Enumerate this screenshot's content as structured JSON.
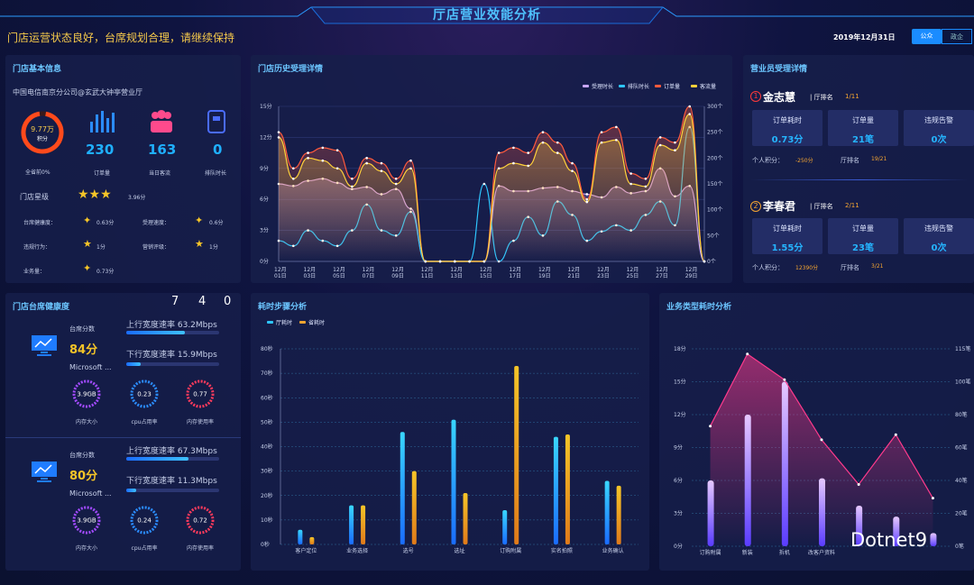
{
  "header": {
    "title": "厅店营业效能分析",
    "slogan": "门店运营状态良好，台席规划合理，请继续保持",
    "date": "2019年12月31日",
    "tabs": [
      "公众",
      "政企"
    ]
  },
  "store_info": {
    "title": "门店基本信息",
    "store_name": "中国电信南京分公司@玄武大钟亭营业厅",
    "score_value": "9.77万",
    "score_label": "积分",
    "rank_label": "全省前0%",
    "stats": [
      {
        "value": "230",
        "label": "订单量"
      },
      {
        "value": "163",
        "label": "当日客流"
      },
      {
        "value": "0",
        "label": "排队时长"
      }
    ],
    "star_label": "门店星级",
    "star_count": 3,
    "star_value": "3.96分",
    "metrics": [
      {
        "label": "台席健康度：",
        "value": "0.63分"
      },
      {
        "label": "受理速度：",
        "value": "0.6分"
      },
      {
        "label": "违规行为：",
        "value": "1分"
      },
      {
        "label": "营销评级：",
        "value": "1分"
      },
      {
        "label": "业务量：",
        "value": "0.73分"
      }
    ]
  },
  "history": {
    "title": "门店历史受理详情",
    "legend": [
      "受理时长",
      "排队时长",
      "订单量",
      "客流量"
    ],
    "legend_colors": [
      "#c9a6ff",
      "#2ec6ff",
      "#ff5a3c",
      "#ffd23a"
    ],
    "y_left_ticks": [
      "15分",
      "12分",
      "9分",
      "6分",
      "3分",
      "0分"
    ],
    "y_right_ticks": [
      "300个",
      "250个",
      "200个",
      "150个",
      "100个",
      "50个",
      "0个"
    ],
    "x_ticks": [
      [
        "12月",
        "01日"
      ],
      [
        "12月",
        "03日"
      ],
      [
        "12月",
        "05日"
      ],
      [
        "12月",
        "07日"
      ],
      [
        "12月",
        "09日"
      ],
      [
        "12月",
        "11日"
      ],
      [
        "12月",
        "13日"
      ],
      [
        "12月",
        "15日"
      ],
      [
        "12月",
        "17日"
      ],
      [
        "12月",
        "19日"
      ],
      [
        "12月",
        "21日"
      ],
      [
        "12月",
        "23日"
      ],
      [
        "12月",
        "25日"
      ],
      [
        "12月",
        "27日"
      ],
      [
        "12月",
        "29日"
      ]
    ]
  },
  "staff": {
    "title": "营业员受理详情",
    "rank_prefix": "厅排名",
    "members": [
      {
        "no": "1",
        "name": "金志慧",
        "rank": "1/11",
        "cards": [
          {
            "k": "订单耗时",
            "v": "0.73分"
          },
          {
            "k": "订单量",
            "v": "21笔"
          },
          {
            "k": "违规告警",
            "v": "0次"
          }
        ],
        "points_label": "个人积分：",
        "points": "-250分",
        "rank2_label": "厅排名",
        "rank2": "19/21"
      },
      {
        "no": "2",
        "name": "李春君",
        "rank": "2/11",
        "cards": [
          {
            "k": "订单耗时",
            "v": "1.55分"
          },
          {
            "k": "订单量",
            "v": "23笔"
          },
          {
            "k": "违规告警",
            "v": "0次"
          }
        ],
        "points_label": "个人积分：",
        "points": "12390分",
        "rank2_label": "厅排名",
        "rank2": "3/21"
      }
    ]
  },
  "health": {
    "title": "门店台席健康度",
    "digits": [
      "7",
      "4",
      "0"
    ],
    "desks": [
      {
        "score_label": "台席分数",
        "score": "84分",
        "os": "Microsoft ...",
        "up_label": "上行宽度速率 63.2Mbps",
        "up": 0.63,
        "down_label": "下行宽度速率 15.9Mbps",
        "down": 0.16,
        "gauges": [
          {
            "value": "3.9GB",
            "label": "内存大小",
            "color": "#a24bff"
          },
          {
            "value": "0.23",
            "label": "cpu占用率",
            "color": "#2b8cff"
          },
          {
            "value": "0.77",
            "label": "内存使用率",
            "color": "#ff3a5c"
          }
        ]
      },
      {
        "score_label": "台席分数",
        "score": "80分",
        "os": "Microsoft ...",
        "up_label": "上行宽度速率 67.3Mbps",
        "up": 0.67,
        "down_label": "下行宽度速率 11.3Mbps",
        "down": 0.11,
        "gauges": [
          {
            "value": "3.9GB",
            "label": "内存大小",
            "color": "#a24bff"
          },
          {
            "value": "0.24",
            "label": "cpu占用率",
            "color": "#2b8cff"
          },
          {
            "value": "0.72",
            "label": "内存使用率",
            "color": "#ff3a5c"
          }
        ]
      }
    ]
  },
  "chart_data": [
    {
      "type": "line",
      "title": "门店历史受理详情",
      "x": [
        "12月01日",
        "12月02日",
        "12月03日",
        "12月04日",
        "12月05日",
        "12月06日",
        "12月07日",
        "12月08日",
        "12月09日",
        "12月10日",
        "12月11日",
        "12月12日",
        "12月13日",
        "12月14日",
        "12月15日",
        "12月16日",
        "12月17日",
        "12月18日",
        "12月19日",
        "12月20日",
        "12月21日",
        "12月22日",
        "12月23日",
        "12月24日",
        "12月25日",
        "12月26日",
        "12月27日",
        "12月28日",
        "12月29日",
        "12月30日"
      ],
      "series": [
        {
          "name": "受理时长",
          "axis": "left",
          "values": [
            7.5,
            7.3,
            7.8,
            8,
            7.6,
            7,
            7.2,
            6.5,
            7,
            5.1,
            0,
            0,
            0,
            0,
            0,
            7.3,
            6.8,
            6.8,
            7.1,
            7.2,
            6.8,
            6.5,
            6.2,
            7.2,
            6.6,
            6.8,
            9,
            6.3,
            7.3,
            0
          ]
        },
        {
          "name": "排队时长",
          "axis": "left",
          "values": [
            2,
            1.5,
            3,
            2,
            1.5,
            3,
            5.5,
            3,
            2.5,
            4.8,
            0,
            0,
            0,
            0,
            7.5,
            0,
            2,
            4.3,
            2.5,
            5.8,
            4.5,
            2,
            2.9,
            3.5,
            3,
            4.5,
            5.8,
            3.5,
            13,
            0
          ]
        },
        {
          "name": "订单量",
          "axis": "right",
          "values": [
            250,
            180,
            210,
            220,
            215,
            160,
            200,
            190,
            160,
            195,
            0,
            0,
            0,
            0,
            0,
            210,
            220,
            210,
            250,
            230,
            190,
            120,
            250,
            260,
            170,
            160,
            240,
            230,
            300,
            0
          ]
        },
        {
          "name": "客流量",
          "axis": "right",
          "values": [
            240,
            160,
            200,
            195,
            180,
            145,
            190,
            175,
            150,
            180,
            0,
            0,
            0,
            0,
            0,
            180,
            190,
            185,
            230,
            210,
            175,
            115,
            230,
            235,
            150,
            145,
            225,
            215,
            285,
            0
          ]
        }
      ],
      "ylim_left": [
        0,
        15
      ],
      "ylim_right": [
        0,
        300
      ]
    },
    {
      "type": "bar",
      "title": "耗时步骤分析",
      "categories": [
        "客户定位",
        "业务选择",
        "选号",
        "选址",
        "订购附属",
        "实名拍照",
        "业务确认"
      ],
      "series": [
        {
          "name": "厅耗时",
          "values": [
            6,
            16,
            46,
            51,
            14,
            44,
            26
          ]
        },
        {
          "name": "省耗时",
          "values": [
            3,
            16,
            30,
            21,
            73,
            45,
            24
          ]
        }
      ],
      "ylim": [
        0,
        80
      ],
      "y_ticks": [
        "80秒",
        "70秒",
        "60秒",
        "50秒",
        "40秒",
        "30秒",
        "20秒",
        "10秒",
        "0秒"
      ]
    },
    {
      "type": "bar",
      "title": "业务类型耗时分析",
      "categories": [
        "订购附属",
        "新装",
        "拆机",
        "改客户资料",
        "",
        "",
        ""
      ],
      "series": [
        {
          "name": "耗时",
          "axis": "left",
          "values": [
            6,
            12,
            15,
            6.2,
            3.7,
            2.7,
            1.2
          ]
        },
        {
          "name": "业务量",
          "axis": "right",
          "values": [
            70,
            112,
            97,
            62,
            36,
            65,
            28
          ]
        }
      ],
      "ylim_left": [
        0,
        18
      ],
      "ylim_right": [
        0,
        115
      ],
      "y_left_ticks": [
        "18分",
        "15分",
        "12分",
        "9分",
        "6分",
        "3分",
        "0分"
      ],
      "y_right_ticks": [
        "115笔",
        "100笔",
        "80笔",
        "60笔",
        "40笔",
        "20笔",
        "0笔"
      ]
    }
  ],
  "steps_panel": {
    "title": "耗时步骤分析",
    "legend": [
      "厅耗时",
      "省耗时"
    ],
    "legend_colors": [
      "#2ec6ff",
      "#f2a531"
    ]
  },
  "biz_panel": {
    "title": "业务类型耗时分析"
  },
  "watermark": {
    "text": "Dotnet9"
  }
}
